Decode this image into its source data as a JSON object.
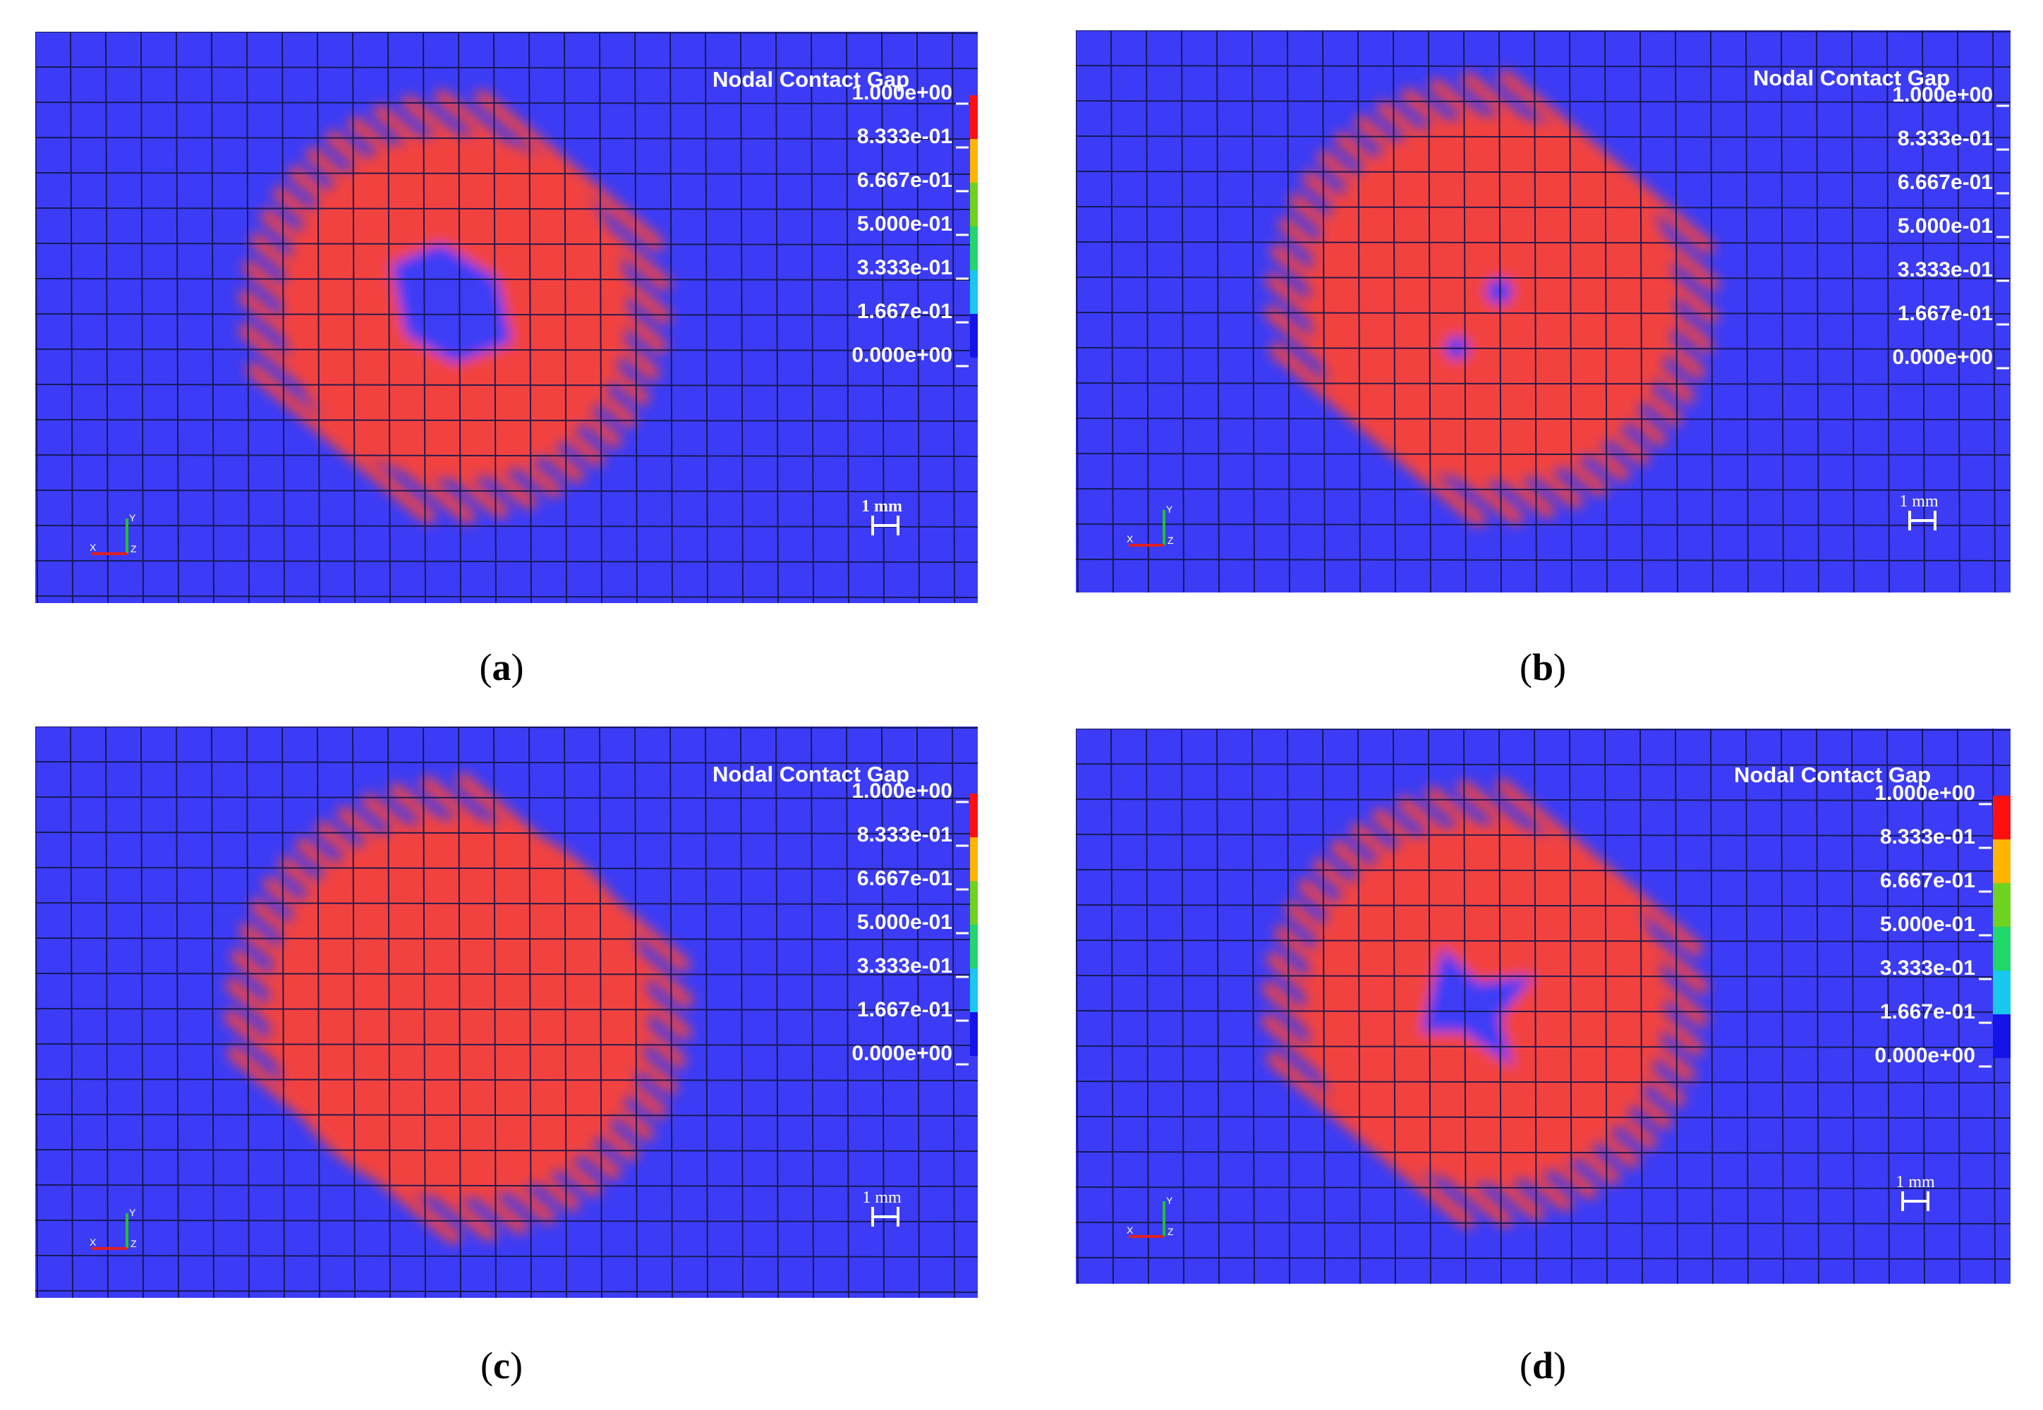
{
  "colors": {
    "background": "#3c3cf6",
    "contact": "#f2433f",
    "grid_line": "#15154a",
    "legend_bands": [
      "#ff1010",
      "#ffb400",
      "#6fd21f",
      "#1fd76b",
      "#18c8ee",
      "#1414e8"
    ]
  },
  "legend": {
    "title": "Nodal Contact Gap",
    "values": [
      "1.000e+00",
      "8.333e-01",
      "6.667e-01",
      "5.000e-01",
      "3.333e-01",
      "1.667e-01",
      "0.000e+00"
    ]
  },
  "scale_bar_label": "1 mm",
  "triad_icons": [
    "axis-triad-icon"
  ],
  "axes": {
    "x": "X",
    "y": "Y",
    "z": "Z"
  },
  "panels": [
    {
      "caption": "a",
      "hole": "large"
    },
    {
      "caption": "b",
      "hole": "none"
    },
    {
      "caption": "c",
      "hole": "none"
    },
    {
      "caption": "d",
      "hole": "star"
    }
  ]
}
